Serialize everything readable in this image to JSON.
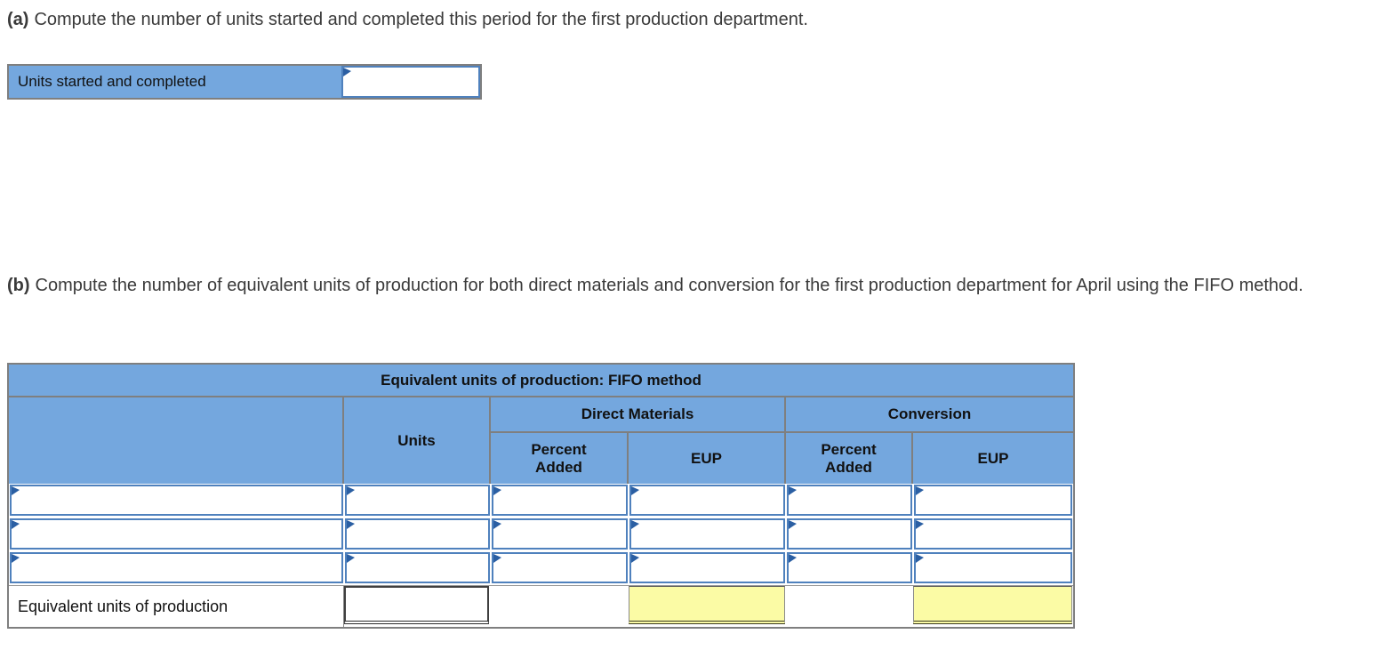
{
  "colors": {
    "header_blue": "#74a7de",
    "input_border_blue": "#4f81bd",
    "marker_blue": "#2b5fa3",
    "highlight_yellow": "#fbfba5",
    "table_border_gray": "#7f7f7f",
    "prompt_text": "#3a3a3a"
  },
  "section_a": {
    "label": "(a)",
    "prompt": "Compute the number of units started and completed this period for the first production department.",
    "table": {
      "row_label": "Units started and completed",
      "input_value": ""
    }
  },
  "section_b": {
    "label": "(b)",
    "prompt": "Compute the number of equivalent units of production for both direct materials and conversion for the first production department for April using the FIFO method.",
    "table": {
      "title": "Equivalent units of production: FIFO method",
      "columns": {
        "units": "Units",
        "direct_materials": "Direct Materials",
        "conversion": "Conversion",
        "percent_added": "Percent Added",
        "eup": "EUP"
      },
      "rows": [
        {
          "label": "",
          "units": "",
          "dm_percent": "",
          "dm_eup": "",
          "conv_percent": "",
          "conv_eup": ""
        },
        {
          "label": "",
          "units": "",
          "dm_percent": "",
          "dm_eup": "",
          "conv_percent": "",
          "conv_eup": ""
        },
        {
          "label": "",
          "units": "",
          "dm_percent": "",
          "dm_eup": "",
          "conv_percent": "",
          "conv_eup": ""
        }
      ],
      "total_row": {
        "label": "Equivalent units of production",
        "units_value": "",
        "dm_eup_value": "",
        "conv_eup_value": ""
      }
    }
  }
}
